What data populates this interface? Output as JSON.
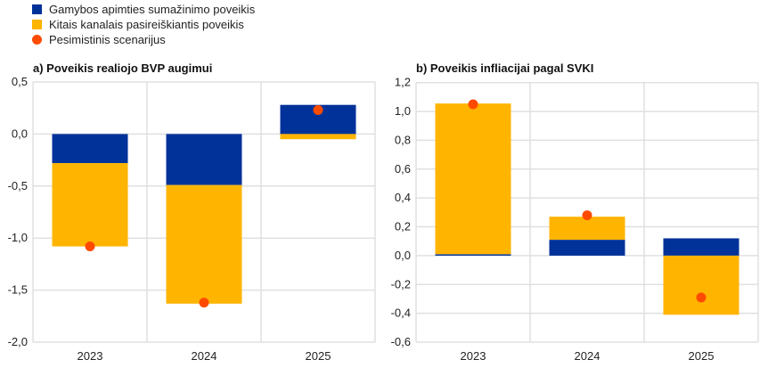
{
  "colors": {
    "blue": "#003299",
    "yellow": "#FFB400",
    "orange": "#FF4B00",
    "grid": "#E0E0E0"
  },
  "legend": [
    {
      "label": "Gamybos apimties sumažinimo poveikis",
      "kind": "square",
      "color": "#003299"
    },
    {
      "label": "Kitais kanalais pasireiškiantis poveikis",
      "kind": "square",
      "color": "#FFB400"
    },
    {
      "label": "Pesimistinis scenarijus",
      "kind": "dot",
      "color": "#FF4B00"
    }
  ],
  "chart_data": [
    {
      "type": "bar",
      "stacked": true,
      "title": "a) Poveikis realiojo BVP augimui",
      "categories": [
        "2023",
        "2024",
        "2025"
      ],
      "ylim": [
        -2.0,
        0.5
      ],
      "yticks": [
        "0,5",
        "0,0",
        "-0,5",
        "-1,0",
        "-1,5",
        "-2,0"
      ],
      "ytick_values": [
        0.5,
        0.0,
        -0.5,
        -1.0,
        -1.5,
        -2.0
      ],
      "grid": true,
      "series": [
        {
          "name": "Gamybos apimties sumažinimo poveikis",
          "type": "bar",
          "values": [
            -0.28,
            -0.49,
            0.28
          ]
        },
        {
          "name": "Kitais kanalais pasireiškiantis poveikis",
          "type": "bar",
          "values": [
            -0.8,
            -1.14,
            -0.05
          ]
        },
        {
          "name": "Pesimistinis scenarijus",
          "type": "scatter",
          "values": [
            -1.08,
            -1.62,
            0.23
          ]
        }
      ]
    },
    {
      "type": "bar",
      "stacked": true,
      "title": "b) Poveikis infliacijai pagal SVKI",
      "categories": [
        "2023",
        "2024",
        "2025"
      ],
      "ylim": [
        -0.6,
        1.2
      ],
      "yticks": [
        "1,2",
        "1,0",
        "0,8",
        "0,6",
        "0,4",
        "0,2",
        "0,0",
        "-0,2",
        "-0,4",
        "-0,6"
      ],
      "ytick_values": [
        1.2,
        1.0,
        0.8,
        0.6,
        0.4,
        0.2,
        0.0,
        -0.2,
        -0.4,
        -0.6
      ],
      "grid": true,
      "series": [
        {
          "name": "Gamybos apimties sumažinimo poveikis",
          "type": "bar",
          "values": [
            0.01,
            0.11,
            0.12
          ]
        },
        {
          "name": "Kitais kanalais pasireiškiantis poveikis",
          "type": "bar",
          "values": [
            1.045,
            0.16,
            -0.41
          ]
        },
        {
          "name": "Pesimistinis scenarijus",
          "type": "scatter",
          "values": [
            1.05,
            0.28,
            -0.29
          ]
        }
      ]
    }
  ]
}
